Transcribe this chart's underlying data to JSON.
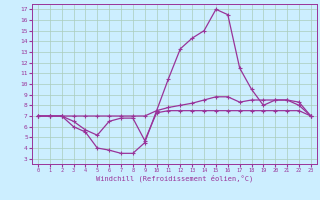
{
  "background_color": "#cceeff",
  "grid_color": "#aaccbb",
  "line_color": "#993399",
  "xlabel": "Windchill (Refroidissement éolien,°C)",
  "ylabel_ticks": [
    3,
    4,
    5,
    6,
    7,
    8,
    9,
    10,
    11,
    12,
    13,
    14,
    15,
    16,
    17
  ],
  "xlabel_ticks": [
    0,
    1,
    2,
    3,
    4,
    5,
    6,
    7,
    8,
    9,
    10,
    11,
    12,
    13,
    14,
    15,
    16,
    17,
    18,
    19,
    20,
    21,
    22,
    23
  ],
  "xlim": [
    -0.5,
    23.5
  ],
  "ylim": [
    2.5,
    17.5
  ],
  "series1_x": [
    0,
    1,
    2,
    3,
    4,
    5,
    6,
    7,
    8,
    9,
    10,
    11,
    12,
    13,
    14,
    15,
    16,
    17,
    18,
    19,
    20,
    21,
    22,
    23
  ],
  "series1_y": [
    7.0,
    7.0,
    7.0,
    6.5,
    5.7,
    5.2,
    6.5,
    6.8,
    6.8,
    4.7,
    7.3,
    7.5,
    7.5,
    7.5,
    7.5,
    7.5,
    7.5,
    7.5,
    7.5,
    7.5,
    7.5,
    7.5,
    7.5,
    7.0
  ],
  "series2_x": [
    0,
    1,
    2,
    3,
    4,
    5,
    6,
    7,
    8,
    9,
    10,
    11,
    12,
    13,
    14,
    15,
    16,
    17,
    18,
    19,
    20,
    21,
    22,
    23
  ],
  "series2_y": [
    7.0,
    7.0,
    7.0,
    6.0,
    5.5,
    4.0,
    3.8,
    3.5,
    3.5,
    4.5,
    7.5,
    10.5,
    13.3,
    14.3,
    15.0,
    17.0,
    16.5,
    11.5,
    9.5,
    8.0,
    8.5,
    8.5,
    8.0,
    7.0
  ],
  "series3_x": [
    0,
    1,
    2,
    3,
    4,
    5,
    6,
    7,
    8,
    9,
    10,
    11,
    12,
    13,
    14,
    15,
    16,
    17,
    18,
    19,
    20,
    21,
    22,
    23
  ],
  "series3_y": [
    7.0,
    7.0,
    7.0,
    7.0,
    7.0,
    7.0,
    7.0,
    7.0,
    7.0,
    7.0,
    7.5,
    7.8,
    8.0,
    8.2,
    8.5,
    8.8,
    8.8,
    8.3,
    8.5,
    8.5,
    8.5,
    8.5,
    8.3,
    7.0
  ]
}
